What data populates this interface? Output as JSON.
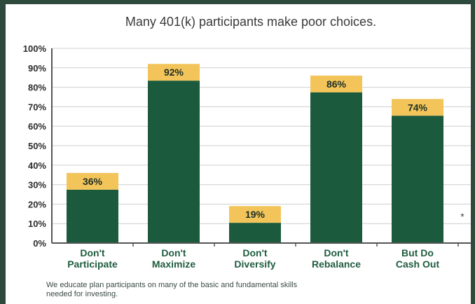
{
  "chart_data": {
    "type": "bar",
    "title": "Many 401(k) participants make poor choices.",
    "categories": [
      [
        "Don't",
        "Participate"
      ],
      [
        "Don't",
        "Maximize"
      ],
      [
        "Don't",
        "Diversify"
      ],
      [
        "Don't",
        "Rebalance"
      ],
      [
        "But Do",
        "Cash Out"
      ]
    ],
    "values": [
      36,
      92,
      19,
      86,
      74
    ],
    "data_labels": [
      "36%",
      "92%",
      "19%",
      "86%",
      "74%"
    ],
    "y_ticks": [
      "0%",
      "10%",
      "20%",
      "30%",
      "40%",
      "50%",
      "60%",
      "70%",
      "80%",
      "90%",
      "100%"
    ],
    "ylim": [
      0,
      100
    ],
    "grid": true,
    "colors": {
      "bar": "#1b5a3c",
      "cap": "#f2c45a",
      "grid": "#cfcfcf",
      "axis": "#555555"
    }
  },
  "footnote": [
    "We educate plan participants on many of the basic and fundamental skills",
    "needed for investing."
  ],
  "side_mark": "*"
}
